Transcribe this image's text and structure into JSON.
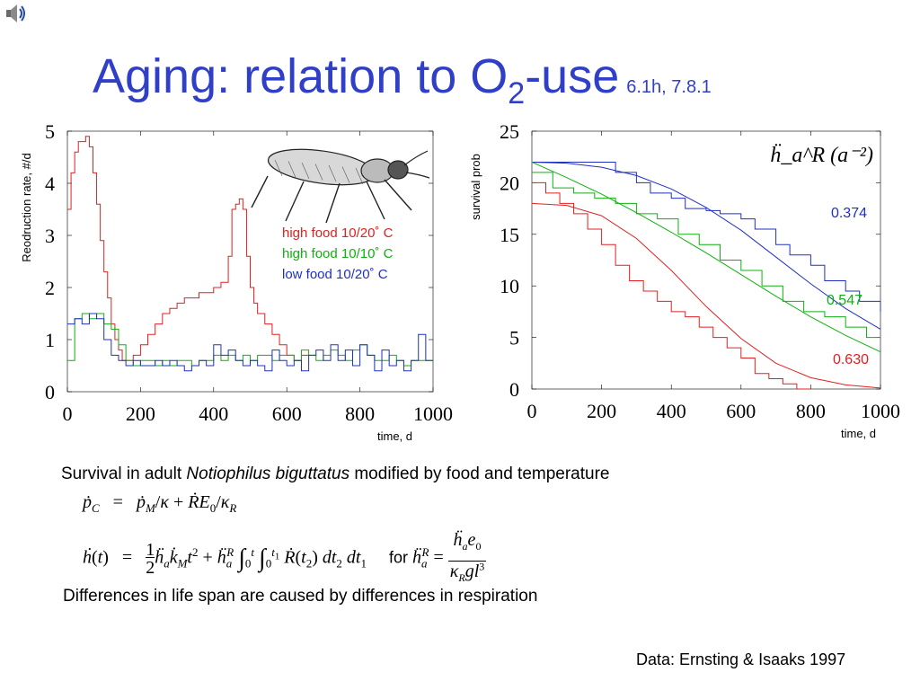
{
  "speaker_icon": "speaker-icon",
  "title": {
    "main": "Aging: relation to O",
    "subscript": "2",
    "suffix": "-use",
    "ref": "6.1h, 7.8.1"
  },
  "chart_data": [
    {
      "type": "line",
      "ylabel": "Reodruction rate, #/d",
      "xlabel": "time, d",
      "xlim": [
        0,
        1000
      ],
      "ylim": [
        0,
        5
      ],
      "xticks": [
        "0",
        "200",
        "400",
        "600",
        "800",
        "1000"
      ],
      "yticks": [
        "0",
        "1",
        "2",
        "3",
        "4",
        "5"
      ],
      "legend": [
        "high food 10/20˚ C",
        "high food 10/10˚ C",
        "low food 10/20˚ C"
      ],
      "legend_colors": [
        "#e02020",
        "#10b010",
        "#2030c0"
      ],
      "series": [
        {
          "name": "high food 10/20˚ C",
          "color": "#e02020",
          "x": [
            0,
            10,
            20,
            30,
            40,
            50,
            60,
            70,
            80,
            90,
            100,
            110,
            120,
            130,
            140,
            150,
            160,
            180,
            200,
            220,
            240,
            260,
            280,
            300,
            320,
            340,
            360,
            380,
            400,
            420,
            440,
            450,
            460,
            470,
            480,
            490,
            500,
            510,
            520,
            540,
            560,
            580,
            600,
            620,
            640,
            660
          ],
          "y": [
            3.5,
            4.2,
            4.6,
            4.8,
            4.8,
            4.9,
            4.7,
            4.2,
            3.6,
            2.9,
            2.3,
            1.8,
            1.3,
            1.0,
            0.8,
            0.6,
            0.6,
            0.7,
            0.9,
            1.1,
            1.3,
            1.5,
            1.6,
            1.7,
            1.8,
            1.8,
            1.9,
            1.9,
            2.0,
            2.1,
            2.6,
            3.5,
            3.6,
            3.7,
            3.5,
            2.6,
            2.0,
            1.7,
            1.5,
            1.3,
            1.1,
            0.9,
            0.7,
            0.6,
            0.7,
            0.7
          ]
        },
        {
          "name": "high food 10/10˚ C",
          "color": "#10b010",
          "x": [
            0,
            20,
            40,
            60,
            80,
            100,
            120,
            140,
            160,
            180,
            200,
            220,
            240,
            260,
            280,
            300,
            320,
            340,
            360,
            380,
            400,
            420,
            440,
            460,
            480,
            500,
            520,
            540,
            560,
            580,
            600,
            620,
            640,
            660,
            680,
            700,
            720,
            740,
            760,
            780,
            800,
            820,
            840,
            860,
            880,
            900,
            920,
            940,
            960,
            980,
            1000
          ],
          "y": [
            0.6,
            1.4,
            1.5,
            1.4,
            1.5,
            1.3,
            1.2,
            0.9,
            0.6,
            0.5,
            0.6,
            0.6,
            0.5,
            0.6,
            0.5,
            0.6,
            0.6,
            0.5,
            0.6,
            0.6,
            0.7,
            0.6,
            0.7,
            0.6,
            0.7,
            0.6,
            0.7,
            0.7,
            0.6,
            0.7,
            0.7,
            0.6,
            0.8,
            0.7,
            0.6,
            0.7,
            0.8,
            0.7,
            0.6,
            0.8,
            0.9,
            0.7,
            0.6,
            0.6,
            0.7,
            0.6,
            0.5,
            0.6,
            0.6,
            0.6,
            0.6
          ]
        },
        {
          "name": "low food 10/20˚ C",
          "color": "#2030c0",
          "x": [
            0,
            20,
            40,
            60,
            80,
            100,
            120,
            140,
            160,
            180,
            200,
            220,
            240,
            260,
            280,
            300,
            320,
            340,
            360,
            380,
            400,
            420,
            440,
            460,
            480,
            500,
            520,
            540,
            560,
            580,
            600,
            620,
            640,
            660,
            680,
            700,
            720,
            740,
            760,
            780,
            800,
            820,
            840,
            860,
            880,
            900,
            920,
            940,
            960,
            980,
            1000
          ],
          "y": [
            1.3,
            1.4,
            1.3,
            1.5,
            1.4,
            1.0,
            0.7,
            0.6,
            0.5,
            0.6,
            0.5,
            0.5,
            0.6,
            0.5,
            0.6,
            0.5,
            0.4,
            0.5,
            0.6,
            0.5,
            0.9,
            0.7,
            0.8,
            0.6,
            0.5,
            0.6,
            0.5,
            0.4,
            0.8,
            0.6,
            0.5,
            0.6,
            0.4,
            0.7,
            0.8,
            0.6,
            0.9,
            0.6,
            0.8,
            0.5,
            0.9,
            0.7,
            0.4,
            0.8,
            0.5,
            0.6,
            0.4,
            0.6,
            1.1,
            0.6,
            0.6
          ]
        }
      ]
    },
    {
      "type": "line",
      "ylabel": "survival prob",
      "xlabel": "time, d",
      "xlim": [
        0,
        1000
      ],
      "ylim": [
        0,
        25
      ],
      "xticks": [
        "0",
        "200",
        "400",
        "600",
        "800",
        "1000"
      ],
      "yticks": [
        "0",
        "5",
        "10",
        "15",
        "20",
        "25"
      ],
      "annotation": "ḧ_a^R (a⁻²)",
      "labels": [
        "0.374",
        "0.547",
        "0.630"
      ],
      "label_colors": [
        "#2030c0",
        "#10b010",
        "#e02020"
      ],
      "series": [
        {
          "label": "0.374",
          "color": "#2030c0",
          "step_x": [
            0,
            200,
            240,
            300,
            340,
            400,
            440,
            500,
            540,
            600,
            640,
            700,
            740,
            800,
            840,
            900,
            940,
            1000
          ],
          "step_y": [
            22,
            22,
            21,
            20,
            19,
            18.5,
            17.5,
            17.3,
            17,
            16.5,
            15.5,
            14,
            13,
            12,
            10.5,
            9.5,
            8.5,
            7.5
          ],
          "fit_x": [
            0,
            100,
            200,
            300,
            400,
            500,
            600,
            700,
            800,
            900,
            1000
          ],
          "fit_y": [
            22,
            21.9,
            21.5,
            20.7,
            19.4,
            17.6,
            15.4,
            12.8,
            10.2,
            7.8,
            5.8
          ]
        },
        {
          "label": "0.547",
          "color": "#10b010",
          "step_x": [
            0,
            60,
            120,
            180,
            240,
            300,
            360,
            420,
            480,
            540,
            600,
            660,
            720,
            780,
            840,
            900,
            960,
            1000
          ],
          "step_y": [
            21,
            19.5,
            19,
            18.5,
            18,
            17,
            16.5,
            15,
            14,
            12.5,
            11.5,
            10,
            8.5,
            7.5,
            7,
            6,
            5,
            5
          ],
          "fit_x": [
            0,
            100,
            200,
            300,
            400,
            500,
            600,
            700,
            800,
            900,
            1000
          ],
          "fit_y": [
            22,
            20.5,
            18.9,
            17.1,
            15.2,
            13.2,
            11.1,
            9,
            7,
            5.2,
            3.6
          ]
        },
        {
          "label": "0.630",
          "color": "#e02020",
          "step_x": [
            0,
            40,
            80,
            120,
            160,
            200,
            240,
            280,
            320,
            360,
            400,
            440,
            480,
            520,
            560,
            600,
            640,
            680,
            720,
            760,
            800
          ],
          "step_y": [
            20,
            19,
            18,
            17,
            15.5,
            14,
            12,
            10.5,
            9.5,
            8.5,
            7.5,
            7,
            6,
            5,
            4,
            3,
            1.5,
            1,
            0.5,
            0,
            0
          ],
          "fit_x": [
            0,
            100,
            200,
            300,
            400,
            500,
            600,
            700,
            800,
            900,
            1000
          ],
          "fit_y": [
            18,
            17.8,
            16.8,
            14.6,
            11.5,
            8,
            4.9,
            2.5,
            1.1,
            0.4,
            0.1
          ]
        }
      ]
    }
  ],
  "caption": {
    "pre": "Survival in adult ",
    "species": "Notiophilus biguttatus",
    "post": " modified by food and temperature"
  },
  "equation_1": {
    "lhs": "ṗ",
    "lhs_sub": "C",
    "rhs": "= ṗ_M/κ + ṘE_0/κ_R"
  },
  "equation_2": {
    "lhs": "ḣ(t)",
    "rhs": "= ½ ḧ_a k̇_M t² + ḧ_a^R ∫_0^t ∫_0^{t1} Ṙ(t_2) dt_2 dt_1",
    "for_word": "for",
    "def": "ḧ_a^R = ḧ_a e_0 / (κ_R g l³)"
  },
  "statement": "Differences in life span are caused by differences in respiration",
  "credit": "Data: Ernsting & Isaaks 1997"
}
